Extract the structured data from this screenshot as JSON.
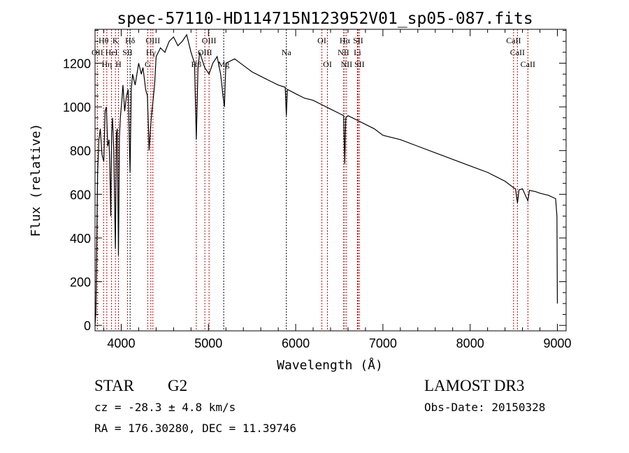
{
  "chart_data": {
    "type": "line",
    "title": "spec-57110-HD114715N123952V01_sp05-087.fits",
    "xlabel": "Wavelength (Å)",
    "ylabel": "Flux (relative)",
    "xlim": [
      3700,
      9100
    ],
    "ylim": [
      -25,
      1355
    ],
    "xticks": [
      4000,
      5000,
      6000,
      7000,
      8000,
      9000
    ],
    "yticks": [
      0,
      200,
      400,
      600,
      800,
      1000,
      1200
    ],
    "grid": false,
    "series": [
      {
        "name": "spectrum",
        "x": [
          3700,
          3710,
          3730,
          3745,
          3760,
          3780,
          3800,
          3815,
          3830,
          3845,
          3860,
          3870,
          3880,
          3890,
          3900,
          3915,
          3933,
          3945,
          3955,
          3968,
          3980,
          3990,
          4005,
          4020,
          4040,
          4060,
          4080,
          4101,
          4115,
          4130,
          4160,
          4200,
          4230,
          4250,
          4280,
          4300,
          4320,
          4335,
          4345,
          4383,
          4400,
          4450,
          4500,
          4550,
          4600,
          4650,
          4700,
          4750,
          4800,
          4840,
          4861,
          4880,
          4900,
          4957,
          5007,
          5050,
          5100,
          5140,
          5167,
          5183,
          5200,
          5250,
          5300,
          5400,
          5500,
          5600,
          5700,
          5800,
          5880,
          5893,
          5905,
          6000,
          6100,
          6200,
          6300,
          6400,
          6500,
          6550,
          6563,
          6575,
          6600,
          6700,
          6800,
          6900,
          7000,
          7200,
          7400,
          7600,
          7800,
          8000,
          8200,
          8400,
          8498,
          8520,
          8542,
          8560,
          8600,
          8662,
          8680,
          8750,
          8800,
          8900,
          8980,
          8995,
          9000
        ],
        "y": [
          0,
          60,
          700,
          850,
          900,
          780,
          750,
          980,
          1000,
          820,
          850,
          720,
          500,
          880,
          950,
          800,
          350,
          880,
          900,
          320,
          860,
          950,
          1020,
          1100,
          980,
          1050,
          1080,
          700,
          1080,
          1150,
          1100,
          1200,
          1150,
          1180,
          1080,
          1050,
          800,
          900,
          950,
          1100,
          1230,
          1270,
          1250,
          1300,
          1320,
          1280,
          1300,
          1330,
          1250,
          1200,
          850,
          1180,
          1250,
          1180,
          1150,
          1200,
          1230,
          1150,
          1050,
          1000,
          1200,
          1210,
          1220,
          1190,
          1160,
          1140,
          1120,
          1100,
          1090,
          960,
          1080,
          1060,
          1040,
          1030,
          1010,
          990,
          970,
          960,
          740,
          950,
          960,
          940,
          920,
          900,
          870,
          850,
          820,
          790,
          760,
          730,
          700,
          660,
          630,
          625,
          560,
          620,
          625,
          570,
          618,
          612,
          605,
          595,
          580,
          500,
          100
        ]
      }
    ],
    "lines": [
      {
        "label": "Hθ",
        "wl": 3798,
        "row": 0,
        "color": "#c00000"
      },
      {
        "label": "K",
        "wl": 3934,
        "row": 0,
        "color": "#c00000"
      },
      {
        "label": "Hδ",
        "wl": 4102,
        "row": 0,
        "color": "#000000"
      },
      {
        "label": "OIII",
        "wl": 4363,
        "row": 0,
        "color": "#c00000"
      },
      {
        "label": "OIII",
        "wl": 5007,
        "row": 0,
        "color": "#c00000"
      },
      {
        "label": "OI",
        "wl": 6300,
        "row": 0,
        "color": "#c00000"
      },
      {
        "label": "Hα",
        "wl": 6563,
        "row": 0,
        "color": "#555555"
      },
      {
        "label": "SII",
        "wl": 6716,
        "row": 0,
        "color": "#c00000"
      },
      {
        "label": "CaII",
        "wl": 8498,
        "row": 0,
        "color": "#c00000"
      },
      {
        "label": "OII",
        "wl": 3727,
        "row": 1,
        "color": "#c00000"
      },
      {
        "label": "HeI",
        "wl": 3889,
        "row": 1,
        "color": "#c00000"
      },
      {
        "label": "SII",
        "wl": 4072,
        "row": 1,
        "color": "#c00000"
      },
      {
        "label": "Hγ",
        "wl": 4340,
        "row": 1,
        "color": "#c00000"
      },
      {
        "label": "OIII",
        "wl": 4959,
        "row": 1,
        "color": "#c00000"
      },
      {
        "label": "Na",
        "wl": 5893,
        "row": 1,
        "color": "#000000"
      },
      {
        "label": "NII",
        "wl": 6548,
        "row": 1,
        "color": "#c00000"
      },
      {
        "label": "Li",
        "wl": 6708,
        "row": 1,
        "color": "#c00000"
      },
      {
        "label": "CaII",
        "wl": 8542,
        "row": 1,
        "color": "#c00000"
      },
      {
        "label": "Hη",
        "wl": 3835,
        "row": 2,
        "color": "#c00000"
      },
      {
        "label": "H",
        "wl": 3968,
        "row": 2,
        "color": "#c00000"
      },
      {
        "label": "G",
        "wl": 4304,
        "row": 2,
        "color": "#c00000"
      },
      {
        "label": "Hβ",
        "wl": 4861,
        "row": 2,
        "color": "#c00000"
      },
      {
        "label": "Mg",
        "wl": 5175,
        "row": 2,
        "color": "#000000"
      },
      {
        "label": "OI",
        "wl": 6364,
        "row": 2,
        "color": "#c00000"
      },
      {
        "label": "NII",
        "wl": 6583,
        "row": 2,
        "color": "#c00000"
      },
      {
        "label": "SII",
        "wl": 6731,
        "row": 2,
        "color": "#c00000"
      },
      {
        "label": "CaII",
        "wl": 8662,
        "row": 2,
        "color": "#c00000"
      }
    ]
  },
  "info": {
    "object_type": "STAR",
    "subclass": "G2",
    "survey": "LAMOST DR3",
    "cz": "cz = -28.3 ± 4.8 km/s",
    "obs_date": "Obs-Date: 20150328",
    "coords": "RA = 176.30280, DEC =  11.39746"
  }
}
